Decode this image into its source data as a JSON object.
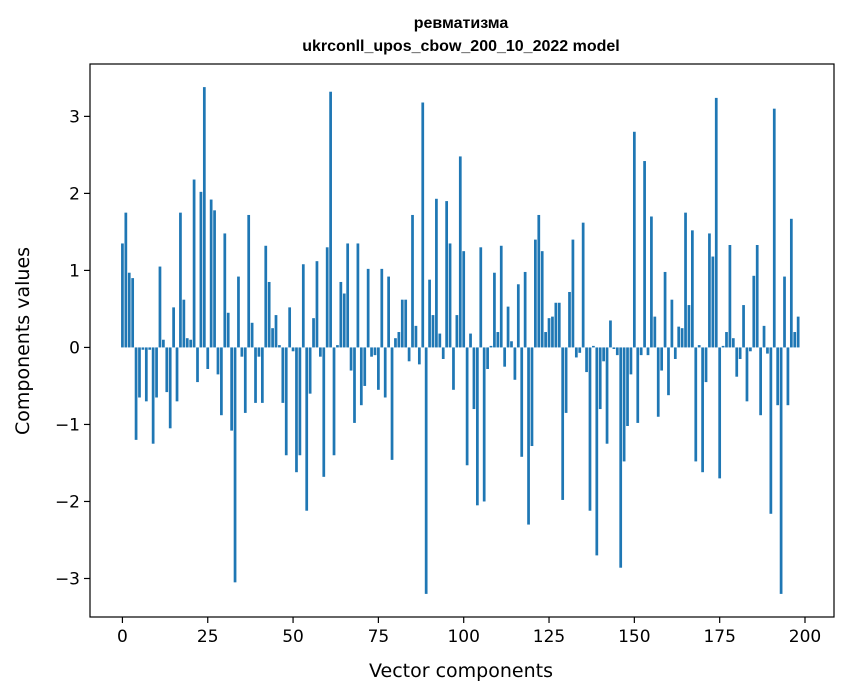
{
  "chart_data": {
    "type": "bar",
    "title_line1": "ревматизма",
    "title_line2": "ukrconll_upos_cbow_200_10_2022 model",
    "xlabel": "Vector components",
    "ylabel": "Components values",
    "xlim": [
      -9.5,
      208.5
    ],
    "ylim": [
      -3.5,
      3.68
    ],
    "x_ticks": [
      0,
      25,
      50,
      75,
      100,
      125,
      150,
      175,
      200
    ],
    "x_tick_labels": [
      "0",
      "25",
      "50",
      "75",
      "100",
      "125",
      "150",
      "175",
      "200"
    ],
    "y_ticks": [
      -3,
      -2,
      -1,
      0,
      1,
      2,
      3
    ],
    "y_tick_labels": [
      "−3",
      "−2",
      "−1",
      "0",
      "1",
      "2",
      "3"
    ],
    "bar_color": "#1f77b4",
    "values": [
      1.35,
      1.75,
      0.97,
      0.9,
      -1.2,
      -0.65,
      -0.03,
      -0.7,
      -0.03,
      -1.25,
      -0.65,
      1.05,
      0.1,
      -0.58,
      -1.05,
      0.52,
      -0.7,
      1.75,
      0.62,
      0.12,
      0.1,
      2.18,
      -0.45,
      2.02,
      3.38,
      -0.28,
      1.92,
      1.78,
      -0.35,
      -0.88,
      1.48,
      0.45,
      -1.08,
      -3.05,
      0.92,
      -0.12,
      -0.85,
      1.72,
      0.32,
      -0.72,
      -0.12,
      -0.72,
      1.32,
      0.85,
      0.25,
      0.42,
      0.03,
      -0.72,
      -1.4,
      0.52,
      -0.05,
      -1.62,
      -1.4,
      1.08,
      -2.12,
      -0.6,
      0.38,
      1.12,
      -0.12,
      -1.68,
      1.3,
      3.32,
      -1.4,
      0.03,
      0.85,
      0.7,
      1.35,
      -0.3,
      -0.98,
      1.35,
      -0.75,
      -0.5,
      1.02,
      -0.12,
      -0.1,
      -0.55,
      1.02,
      -0.65,
      0.92,
      -1.46,
      0.12,
      0.2,
      0.62,
      0.62,
      -0.18,
      1.72,
      0.28,
      -0.22,
      3.18,
      -3.2,
      0.88,
      0.42,
      1.93,
      0.18,
      -0.15,
      1.9,
      1.35,
      -0.55,
      0.42,
      2.48,
      1.25,
      -1.53,
      0.18,
      -0.8,
      -2.05,
      1.3,
      -2.0,
      -0.28,
      0.02,
      0.97,
      0.2,
      1.32,
      -0.25,
      0.53,
      0.08,
      -0.42,
      0.82,
      -1.42,
      0.98,
      -2.3,
      -1.28,
      1.4,
      1.72,
      1.25,
      0.2,
      0.38,
      0.4,
      0.58,
      0.58,
      -1.98,
      -0.85,
      0.72,
      1.4,
      -0.13,
      -0.07,
      1.62,
      -0.32,
      -2.12,
      0.02,
      -2.7,
      -0.8,
      -0.18,
      -1.25,
      0.35,
      -0.02,
      -0.1,
      -2.86,
      -1.48,
      -1.02,
      -0.35,
      2.8,
      -0.98,
      -0.1,
      2.42,
      -0.1,
      1.7,
      0.4,
      -0.9,
      -0.3,
      0.98,
      -0.62,
      0.62,
      -0.15,
      0.27,
      0.25,
      1.75,
      0.55,
      1.52,
      -1.48,
      0.03,
      -1.62,
      -0.45,
      1.48,
      1.18,
      3.24,
      -1.7,
      0.02,
      0.2,
      1.33,
      0.12,
      -0.38,
      -0.15,
      0.55,
      -0.7,
      -0.05,
      0.93,
      1.33,
      -0.88,
      0.28,
      -0.08,
      -2.16,
      3.1,
      -0.75,
      -3.2,
      0.92,
      -0.75,
      1.67,
      0.2,
      0.4
    ]
  }
}
